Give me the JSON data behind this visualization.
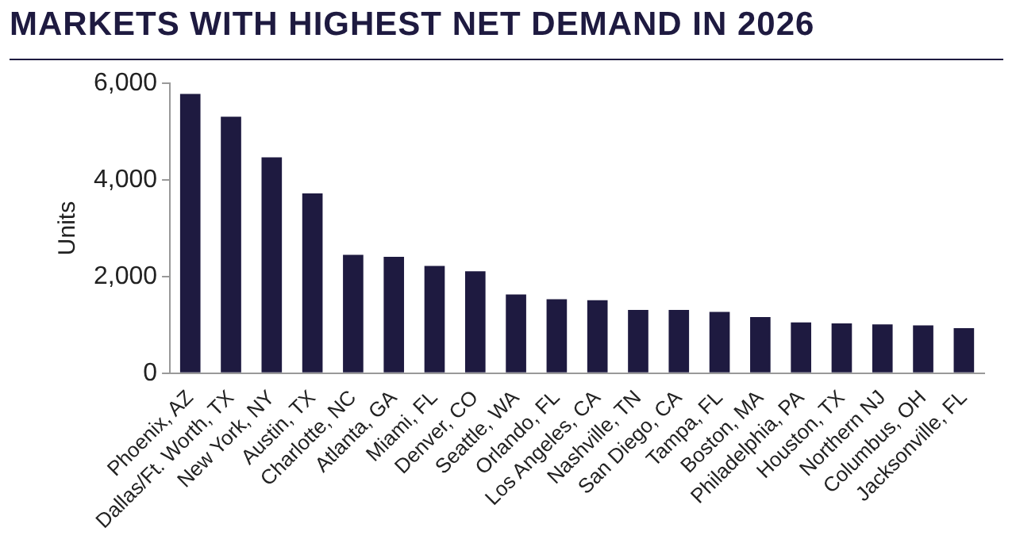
{
  "chart_data": {
    "type": "bar",
    "title": "MARKETS WITH HIGHEST NET DEMAND IN 2026",
    "ylabel": "Units",
    "categories": [
      "Phoenix, AZ",
      "Dallas/Ft. Worth, TX",
      "New York, NY",
      "Austin, TX",
      "Charlotte, NC",
      "Atlanta, GA",
      "Miami, FL",
      "Denver, CO",
      "Seattle, WA",
      "Orlando, FL",
      "Los Angeles, CA",
      "Nashville, TN",
      "San Diego, CA",
      "Tampa, FL",
      "Boston, MA",
      "Philadelphia, PA",
      "Houston, TX",
      "Northern NJ",
      "Columbus, OH",
      "Jacksonville, FL"
    ],
    "values": [
      5780,
      5310,
      4470,
      3720,
      2450,
      2410,
      2220,
      2110,
      1630,
      1530,
      1510,
      1310,
      1310,
      1270,
      1160,
      1050,
      1030,
      1010,
      990,
      930
    ],
    "color": "#1e1a40",
    "ylim": [
      0,
      6000
    ],
    "yticks": [
      0,
      {
        "value": 2000,
        "label": "2,000"
      },
      {
        "value": 4000,
        "label": "4,000"
      },
      {
        "value": 6000,
        "label": "6,000"
      }
    ],
    "grid": false,
    "legend": false
  }
}
